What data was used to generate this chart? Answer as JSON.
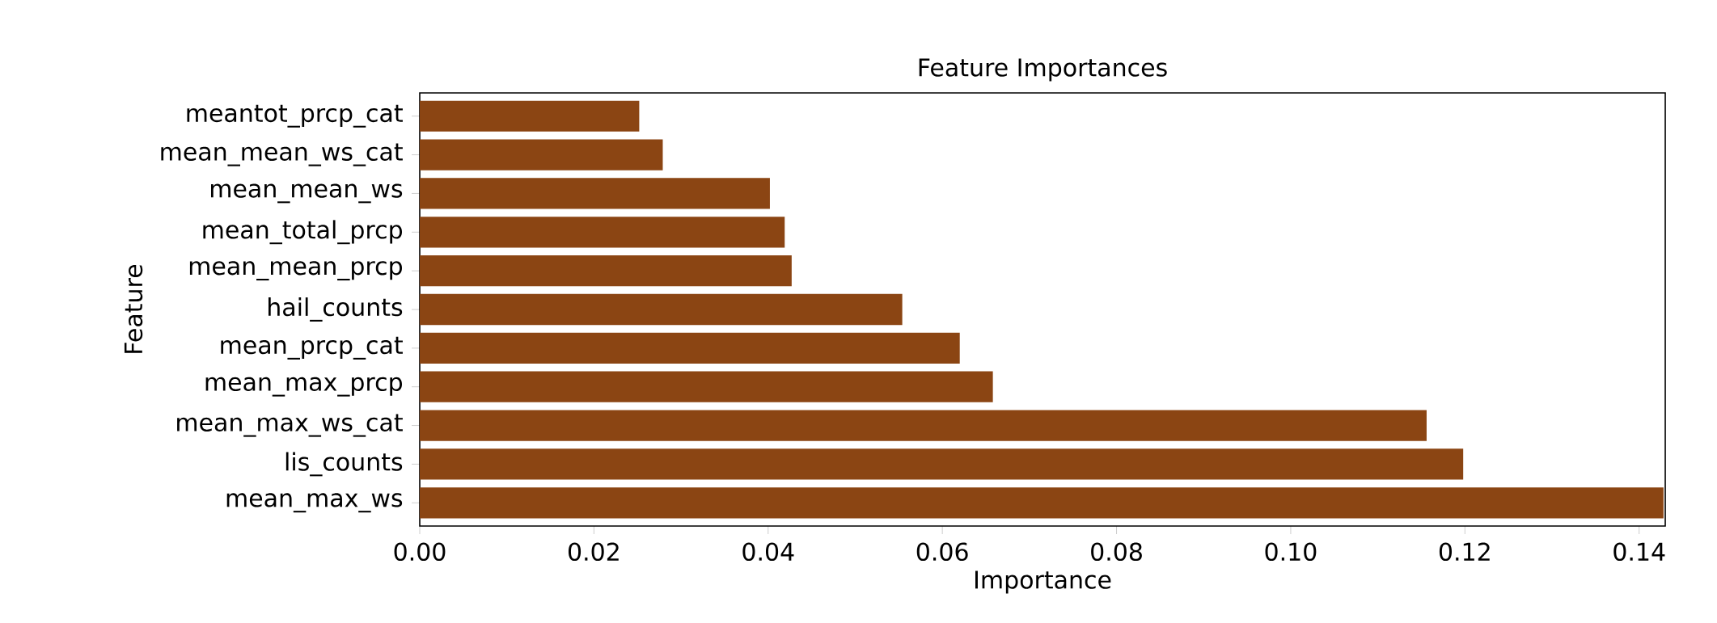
{
  "chart_data": {
    "type": "bar",
    "orientation": "horizontal",
    "title": "Feature Importances",
    "xlabel": "Importance",
    "ylabel": "Feature",
    "categories": [
      "meantot_prcp_cat",
      "mean_mean_ws_cat",
      "mean_mean_ws",
      "mean_total_prcp",
      "mean_mean_prcp",
      "hail_counts",
      "mean_prcp_cat",
      "mean_max_prcp",
      "mean_max_ws_cat",
      "lis_counts",
      "mean_max_ws"
    ],
    "values": [
      0.0252,
      0.0279,
      0.0402,
      0.0419,
      0.0427,
      0.0554,
      0.062,
      0.0658,
      0.1156,
      0.1198,
      0.1428
    ],
    "color": "#8b4513",
    "xlim": [
      0,
      0.143
    ],
    "xticks": [
      {
        "value": 0,
        "label": "0.00"
      },
      {
        "value": 0.02,
        "label": "0.02"
      },
      {
        "value": 0.04,
        "label": "0.04"
      },
      {
        "value": 0.06,
        "label": "0.06"
      },
      {
        "value": 0.08,
        "label": "0.08"
      },
      {
        "value": 0.1,
        "label": "0.10"
      },
      {
        "value": 0.12,
        "label": "0.12"
      },
      {
        "value": 0.14,
        "label": "0.14"
      }
    ]
  }
}
